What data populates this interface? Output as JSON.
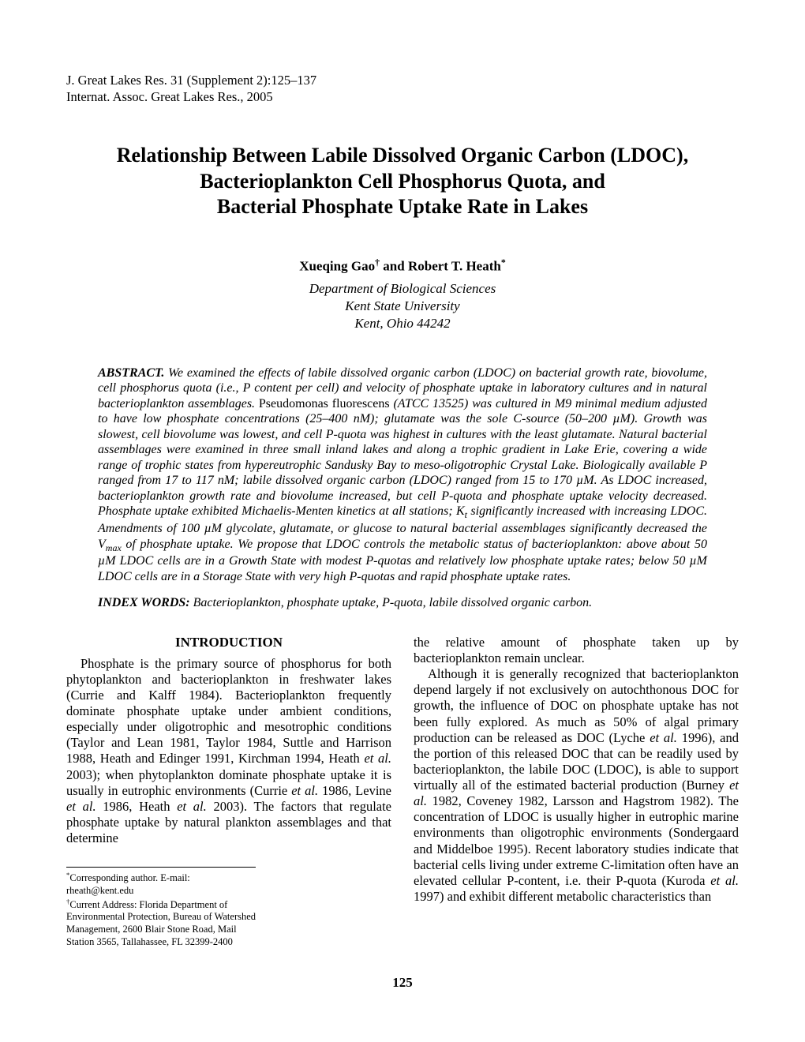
{
  "journal": {
    "line1": "J. Great Lakes Res. 31 (Supplement 2):125–137",
    "line2": "Internat. Assoc. Great Lakes Res., 2005"
  },
  "title": {
    "line1": "Relationship Between Labile Dissolved Organic Carbon (LDOC),",
    "line2": "Bacterioplankton  Cell Phosphorus Quota, and",
    "line3": "Bacterial Phosphate Uptake Rate in Lakes"
  },
  "authors_html": "Xueqing Gao<sup>†</sup> and Robert T. Heath<sup>*</sup>",
  "affiliation": {
    "l1": "Department of Biological Sciences",
    "l2": "Kent State University",
    "l3": "Kent, Ohio 44242"
  },
  "abstract": {
    "heading": "ABSTRACT.",
    "body_html": "   We examined the effects of labile dissolved organic carbon (LDOC) on bacterial growth rate, biovolume, cell phosphorus quota (i.e., P content per cell) and velocity of phosphate uptake in laboratory cultures and in natural bacterioplankton assemblages. <span class=\"roman\">Pseudomonas fluorescens</span> (ATCC 13525) was cultured in M9 minimal medium adjusted to have low phosphate concentrations (25–400 nM); glutamate was the sole C-source (50–200 µM). Growth was slowest, cell biovolume was lowest, and cell P-quota was highest in cultures with the least glutamate. Natural bacterial assemblages were examined in three small inland lakes and along a trophic gradient in Lake Erie, covering a wide range of trophic states from hypereutrophic Sandusky Bay to meso-oligotrophic Crystal Lake. Biologically available P ranged from 17 to 117 nM; labile dissolved organic carbon (LDOC) ranged from 15 to 170 µM. As LDOC increased, bacterioplankton growth rate and biovolume increased, but cell P-quota and phosphate uptake velocity decreased. Phosphate uptake exhibited Michaelis-Menten kinetics at all stations; K<sub>t</sub> significantly increased with increasing LDOC. Amendments of 100 µM glycolate, glutamate, or glucose to natural bacterial assemblages significantly decreased the V<sub>max</sub> of phosphate uptake. We propose that LDOC controls the metabolic status of bacterioplankton: above about 50 µM LDOC cells are in a Growth State with modest P-quotas and relatively low phosphate uptake rates; below 50 µM LDOC cells are in a Storage State with very high P-quotas and rapid phosphate uptake rates."
  },
  "index_words": {
    "heading": "INDEX WORDS:",
    "body": "    Bacterioplankton, phosphate uptake, P-quota, labile dissolved organic carbon."
  },
  "intro_heading": "INTRODUCTION",
  "intro_col1_p1_html": "Phosphate is the primary source of phosphorus for both phytoplankton and bacterioplankton in freshwater lakes (Currie and Kalff 1984). Bacterioplankton frequently dominate phosphate uptake under ambient conditions, especially under oligotrophic and mesotrophic conditions (Taylor and Lean 1981, Taylor 1984, Suttle and Harrison 1988, Heath and Edinger 1991, Kirchman 1994, Heath <i>et al.</i> 2003); when phytoplankton dominate phosphate uptake it is usually in eutrophic environments (Currie <i>et al.</i> 1986, Levine <i>et al.</i> 1986, Heath <i>et al.</i> 2003). The factors that regulate phosphate uptake by natural plankton assemblages and that determine",
  "intro_col2_p1": "the relative amount of phosphate taken up by bacterioplankton remain unclear.",
  "intro_col2_p2_html": "Although it is generally recognized that bacterioplankton depend largely if not exclusively on autochthonous DOC for growth, the influence of DOC on phosphate uptake has not been fully explored. As much as 50% of algal primary production can be released as DOC (Lyche <i>et al.</i> 1996), and the portion of this released DOC that can be readily used by bacterioplankton, the labile DOC (LDOC), is able to support virtually all of the estimated bacterial production (Burney <i>et al.</i> 1982, Coveney 1982, Larsson and Hagstrom 1982). The concentration of LDOC is usually higher in eutrophic marine environments than oligotrophic environments (Sondergaard and Middelboe 1995). Recent laboratory studies indicate that bacterial cells living under extreme C-limitation often have an elevated cellular P-content, i.e. their P-quota (Kuroda <i>et al.</i> 1997) and exhibit different metabolic characteristics than",
  "footnotes": {
    "f1_html": "<sup>*</sup>Corresponding author. E-mail: rheath@kent.edu",
    "f2_html": "<sup>†</sup>Current Address: Florida Department of Environmental Protection, Bureau of Watershed Management, 2600 Blair Stone Road, Mail Station 3565, Tallahassee, FL 32399-2400"
  },
  "page_number": "125"
}
